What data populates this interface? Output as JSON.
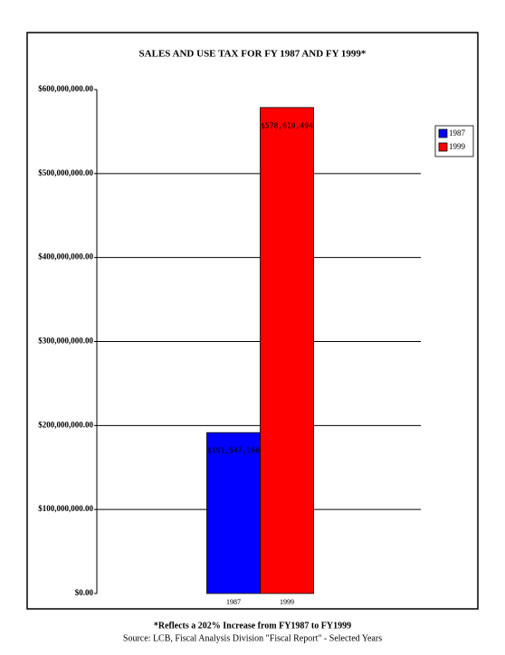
{
  "chart_data": {
    "type": "bar",
    "title": "SALES AND USE TAX FOR FY 1987 AND FY 1999*",
    "categories": [
      "1987",
      "1999"
    ],
    "series": [
      {
        "name": "1987",
        "color": "#0000ff",
        "values": [
          191547166,
          null
        ],
        "value_labels": [
          "$191,547,166",
          null
        ]
      },
      {
        "name": "1999",
        "color": "#ff0000",
        "values": [
          null,
          578610494
        ],
        "value_labels": [
          null,
          "$578,610,494"
        ]
      }
    ],
    "ylim": [
      0,
      600000000
    ],
    "yticks": [
      {
        "value": 0,
        "label": "$0.00"
      },
      {
        "value": 100000000,
        "label": "$100,000,000.00"
      },
      {
        "value": 200000000,
        "label": "$200,000,000.00"
      },
      {
        "value": 300000000,
        "label": "$300,000,000.00"
      },
      {
        "value": 400000000,
        "label": "$400,000,000.00"
      },
      {
        "value": 500000000,
        "label": "$500,000,000.00"
      },
      {
        "value": 600000000,
        "label": "$600,000,000.00"
      }
    ],
    "grid": true,
    "legend": "right",
    "footnote": "*Reflects a 202% Increase from FY1987 to FY1999",
    "source": "Source:  LCB, Fiscal Analysis Division \"Fiscal Report\" - Selected Years"
  }
}
